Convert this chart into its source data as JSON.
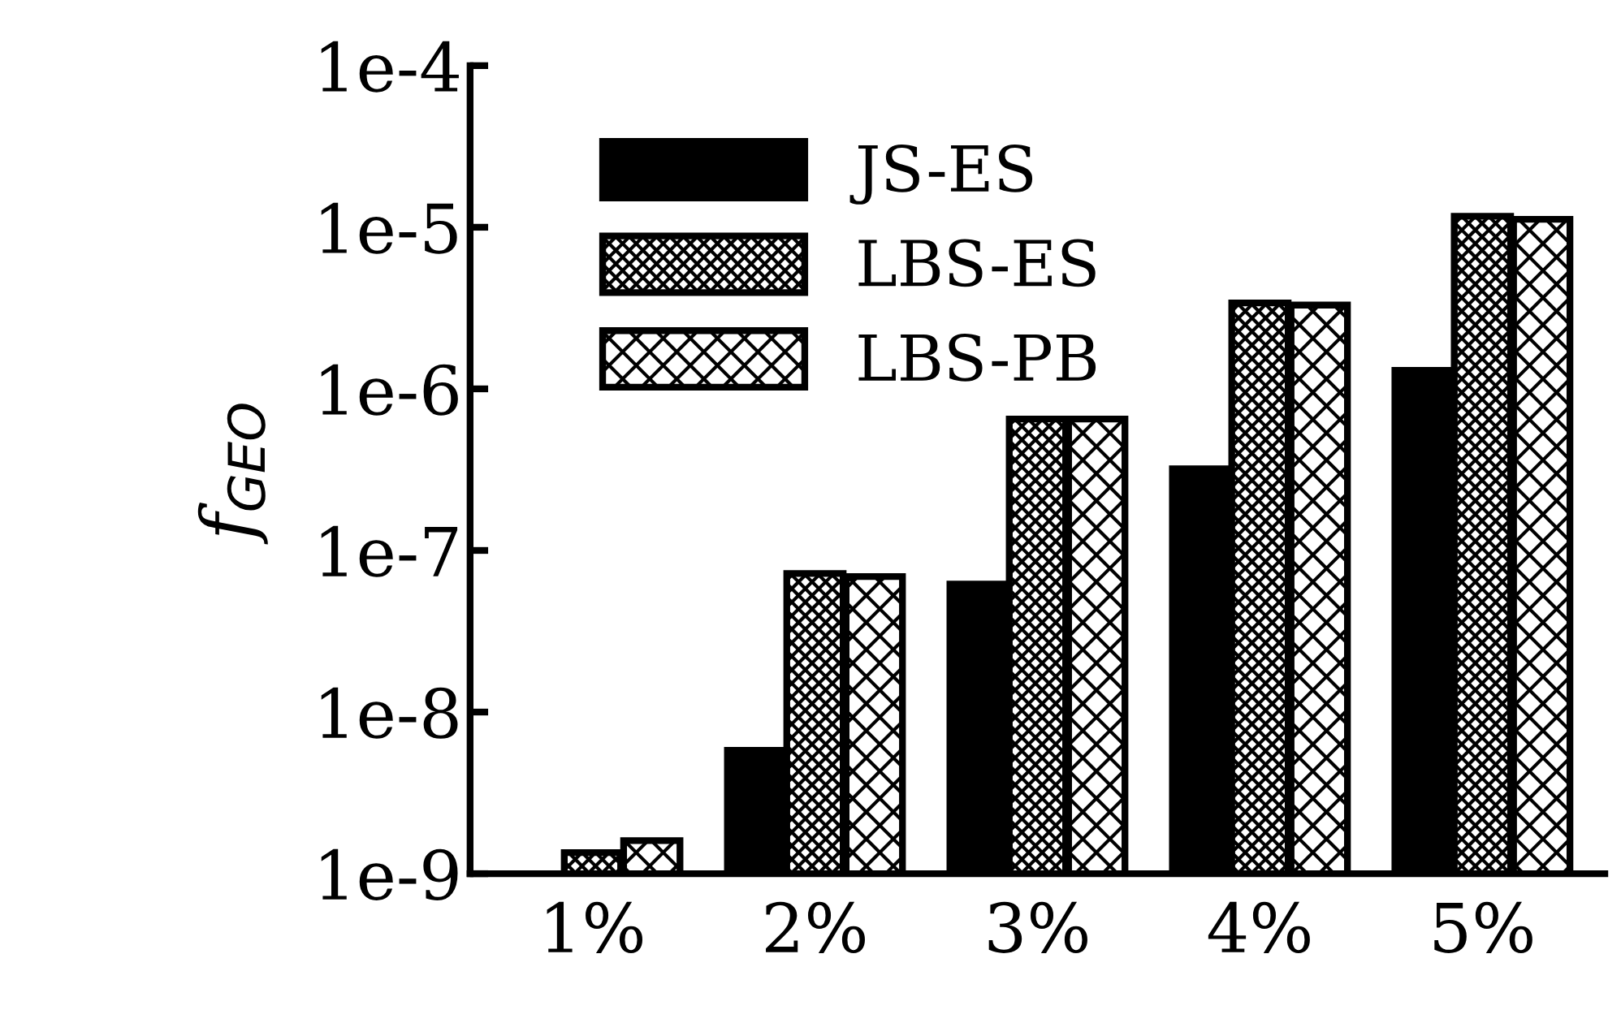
{
  "chart_data": {
    "type": "bar",
    "ylabel": "f$_{GEO}$",
    "log": true,
    "categories": [
      "1%",
      "2%",
      "3%",
      "4%",
      "5%"
    ],
    "series": [
      {
        "name": "JS-ES",
        "color": "#000000",
        "values": [
          null,
          5.8e-09,
          6.2e-08,
          3.2e-07,
          1.3e-06
        ]
      },
      {
        "name": "LBS-ES",
        "color": "#000000",
        "values": [
          1.35e-09,
          7.2e-08,
          6.5e-07,
          3.4e-06,
          1.17e-05
        ]
      },
      {
        "name": "LBS-PB",
        "color": "#000000",
        "values": [
          1.6e-09,
          6.9e-08,
          6.5e-07,
          3.3e-06,
          1.12e-05
        ]
      }
    ],
    "ylim": [
      1e-09,
      0.0001
    ],
    "yticks": [
      {
        "value": 1e-09,
        "label": "1e-9"
      },
      {
        "value": 1e-08,
        "label": "1e-8"
      },
      {
        "value": 1e-07,
        "label": "1e-7"
      },
      {
        "value": 1e-06,
        "label": "1e-6"
      },
      {
        "value": 1e-05,
        "label": "1e-5"
      },
      {
        "value": 0.0001,
        "label": "1e-4"
      }
    ],
    "legend": "top left",
    "grid": false
  }
}
